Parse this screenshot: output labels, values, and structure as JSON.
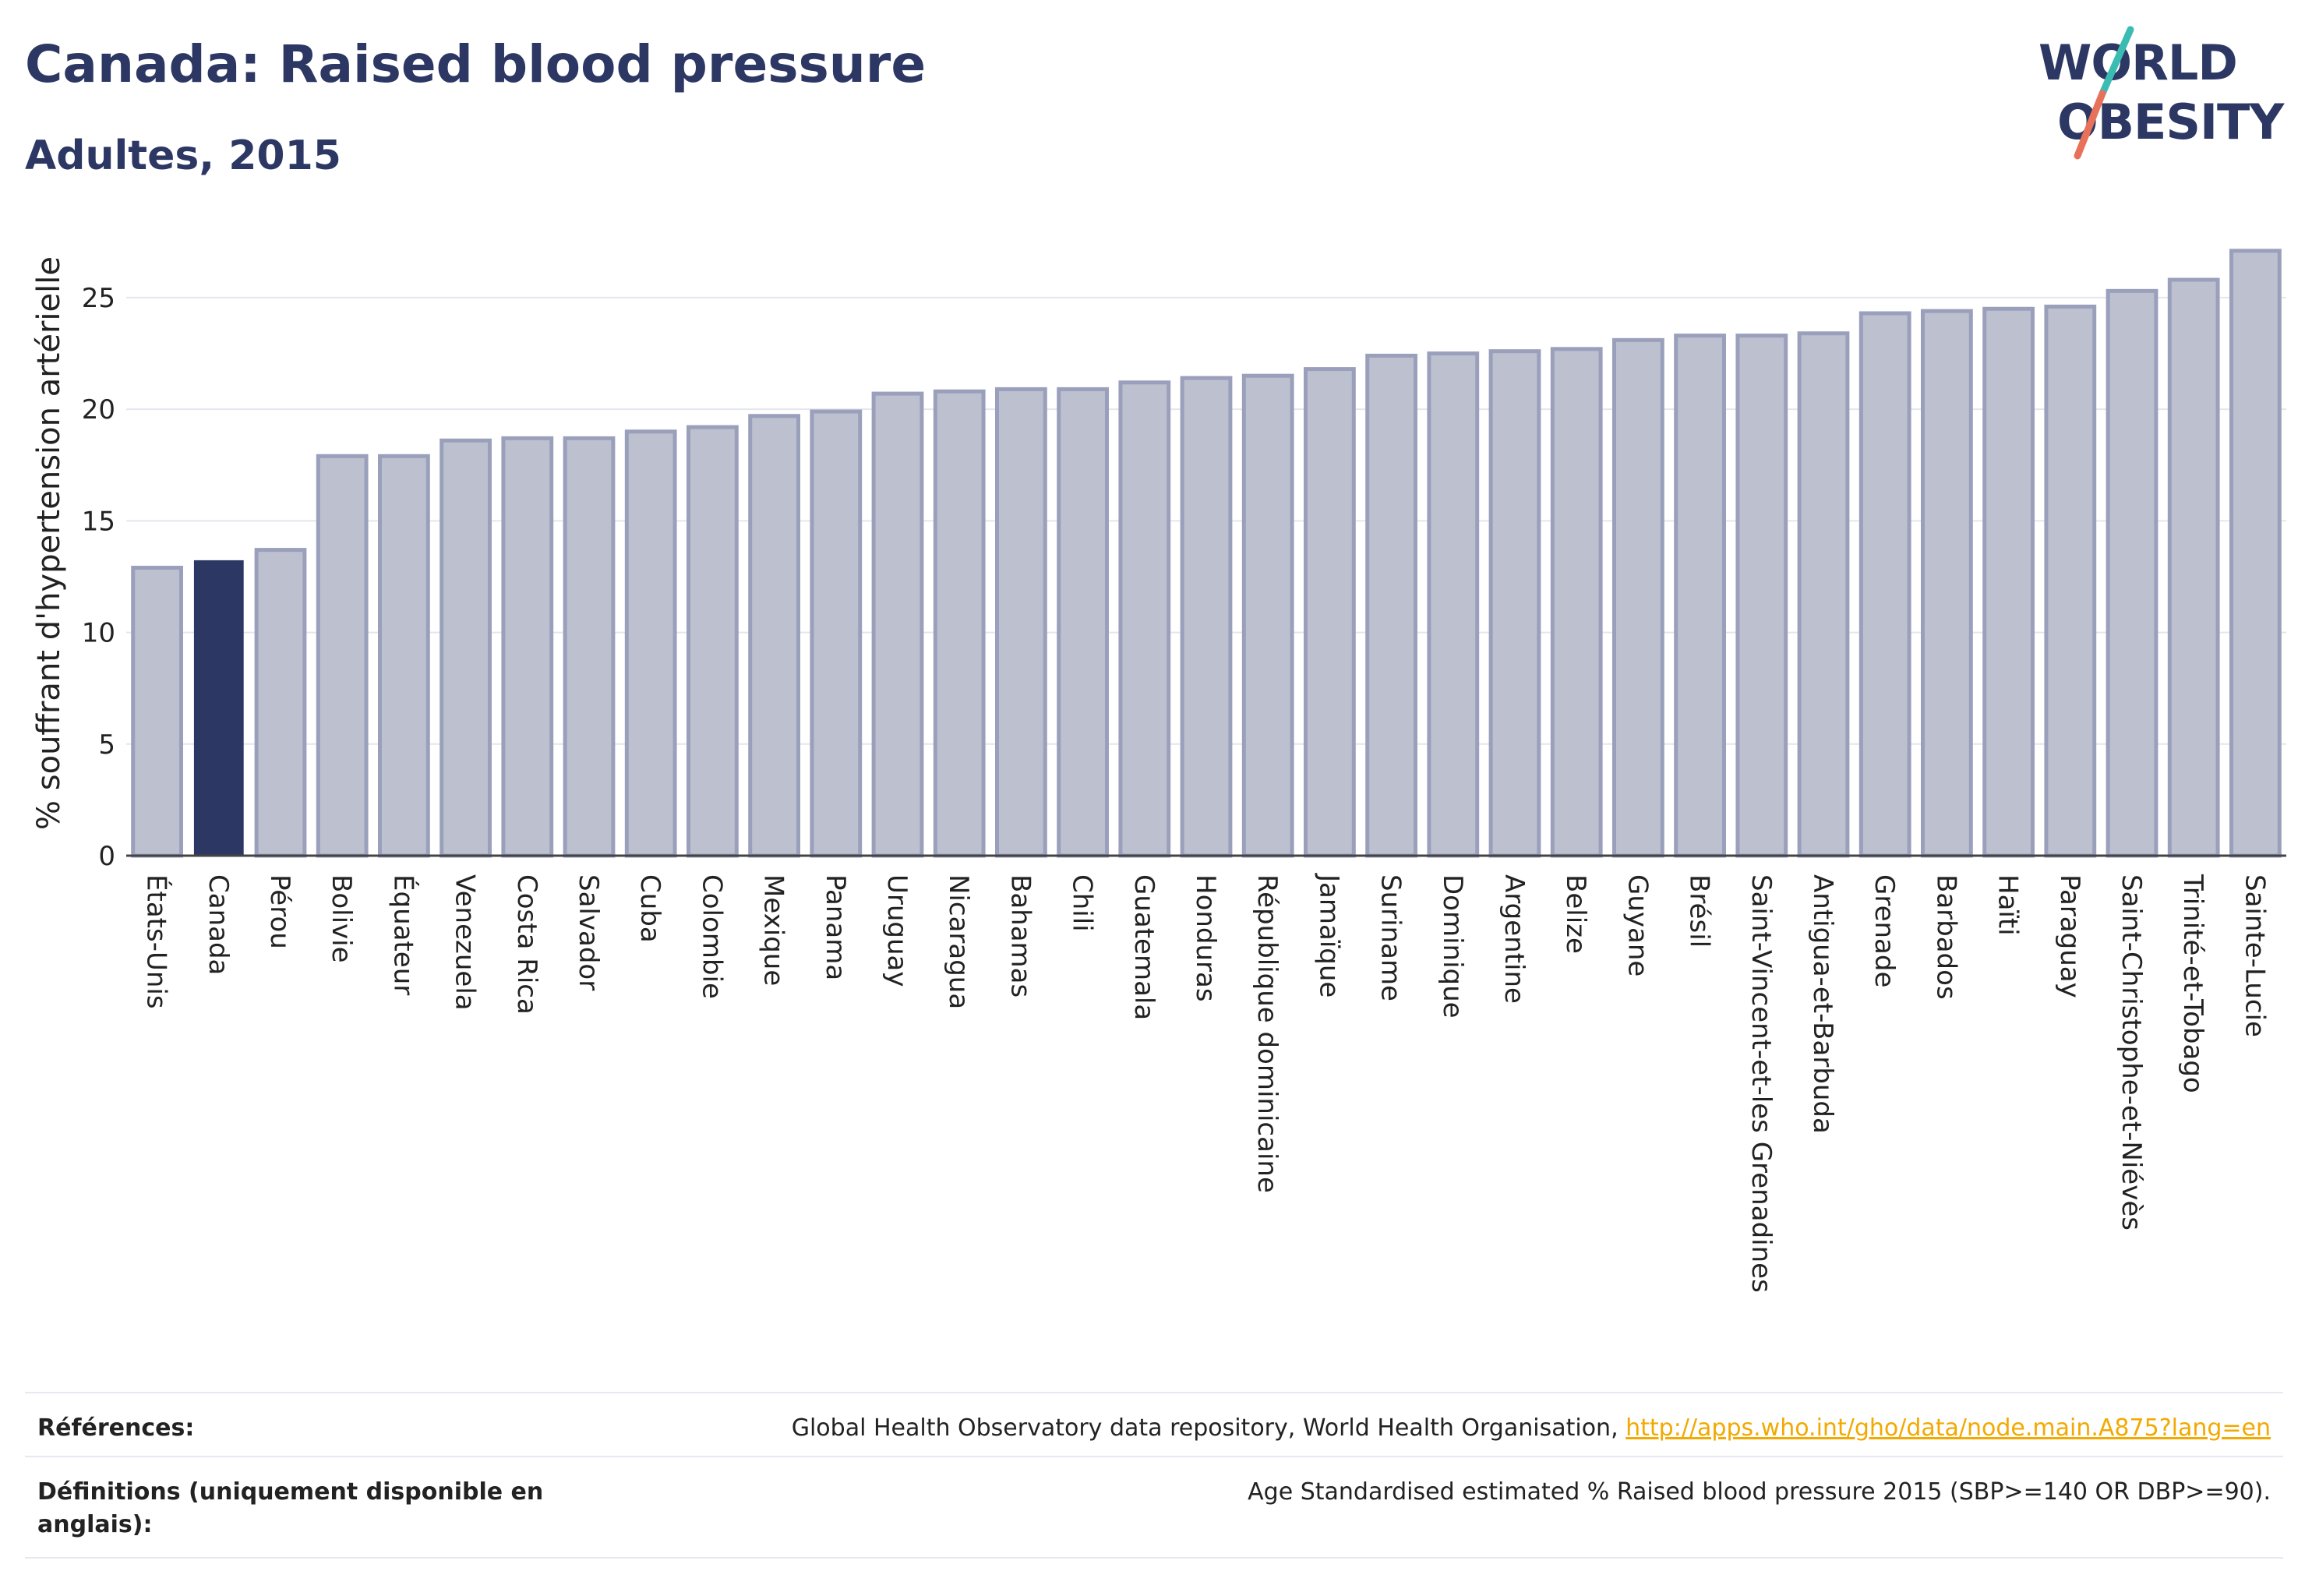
{
  "header": {
    "title": "Canada: Raised blood pressure",
    "subtitle": "Adultes, 2015",
    "logo_text_line1": "WORLD",
    "logo_text_line2": "OBESITY"
  },
  "colors": {
    "highlight_bar": "#2c3763",
    "other_bar": "#bcc0cf",
    "other_bar_border": "#9aa0bb",
    "title": "#2c3763",
    "logo_slash_teal": "#3bbcb3",
    "logo_slash_red": "#e8715a",
    "link": "#f2a900"
  },
  "chart_data": {
    "type": "bar",
    "ylabel": "% souffrant d'hypertension artérielle",
    "xlabel": "",
    "ylim": [
      0,
      28
    ],
    "yticks": [
      0,
      5,
      10,
      15,
      20,
      25
    ],
    "grid": true,
    "highlight": "Canada",
    "categories": [
      "États-Unis",
      "Canada",
      "Pérou",
      "Bolivie",
      "Équateur",
      "Venezuela",
      "Costa Rica",
      "Salvador",
      "Cuba",
      "Colombie",
      "Mexique",
      "Panama",
      "Uruguay",
      "Nicaragua",
      "Bahamas",
      "Chili",
      "Guatemala",
      "Honduras",
      "République dominicaine",
      "Jamaïque",
      "Suriname",
      "Dominique",
      "Argentine",
      "Belize",
      "Guyane",
      "Brésil",
      "Saint-Vincent-et-les Grenadines",
      "Antigua-et-Barbuda",
      "Grenade",
      "Barbados",
      "Haïti",
      "Paraguay",
      "Saint-Christophe-et-Niévès",
      "Trinité-et-Tobago",
      "Sainte-Lucie"
    ],
    "values": [
      12.9,
      13.2,
      13.7,
      17.9,
      17.9,
      18.6,
      18.7,
      18.7,
      19.0,
      19.2,
      19.7,
      19.9,
      20.7,
      20.8,
      20.9,
      20.9,
      21.2,
      21.4,
      21.5,
      21.8,
      22.4,
      22.5,
      22.6,
      22.7,
      23.1,
      23.3,
      23.3,
      23.4,
      24.3,
      24.4,
      24.5,
      24.6,
      25.3,
      25.8,
      27.1
    ]
  },
  "footer": {
    "references_label": "Références:",
    "references_text": "Global Health Observatory data repository, World Health Organisation, ",
    "references_link": "http://apps.who.int/gho/data/node.main.A875?lang=en",
    "definitions_label": "Définitions (uniquement disponible en anglais):",
    "definitions_text": "Age Standardised estimated % Raised blood pressure 2015 (SBP>=140 OR DBP>=90)."
  }
}
